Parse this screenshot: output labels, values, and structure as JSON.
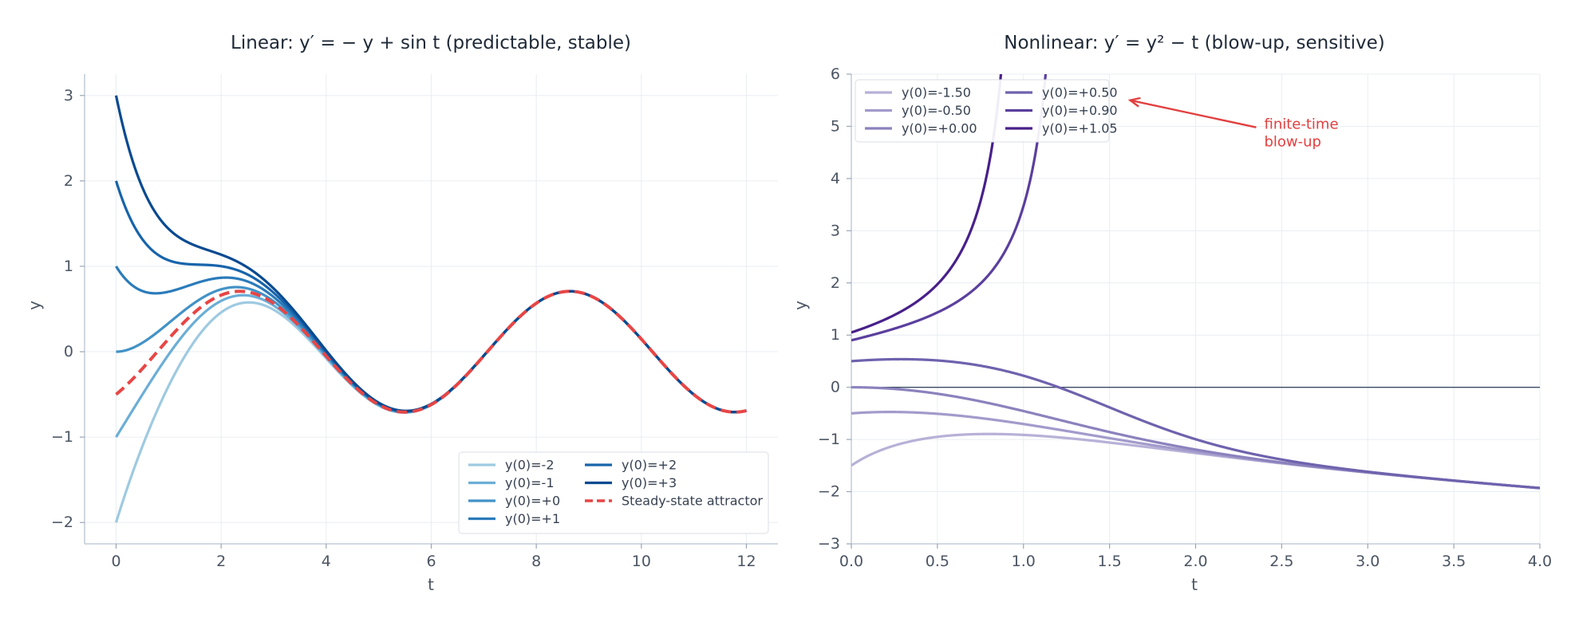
{
  "chart_data": [
    {
      "type": "line",
      "title": "Linear: y′ = − y + sin t  (predictable, stable)",
      "xlabel": "t",
      "ylabel": "y",
      "xlim": [
        -0.6,
        12.6
      ],
      "ylim": [
        -2.25,
        3.25
      ],
      "xticks": [
        0,
        2,
        4,
        6,
        8,
        10,
        12
      ],
      "yticks": [
        -2,
        -1,
        0,
        1,
        2,
        3
      ],
      "xtick_labels": [
        "0",
        "2",
        "4",
        "6",
        "8",
        "10",
        "12"
      ],
      "ytick_labels": [
        "−2",
        "−1",
        "0",
        "1",
        "2",
        "3"
      ],
      "grid": true,
      "legend_position": "lower-right",
      "equation": "y' = -y + sin t",
      "t_range": [
        0,
        12
      ],
      "series": [
        {
          "name": "y(0)=-2",
          "y0": -2,
          "color": "#9ecae1",
          "style": "solid"
        },
        {
          "name": "y(0)=-1",
          "y0": -1,
          "color": "#6baed6",
          "style": "solid"
        },
        {
          "name": "y(0)=+0",
          "y0": 0,
          "color": "#4292c6",
          "style": "solid"
        },
        {
          "name": "y(0)=+1",
          "y0": 1,
          "color": "#2b7bba",
          "style": "solid"
        },
        {
          "name": "y(0)=+2",
          "y0": 2,
          "color": "#1764ab",
          "style": "solid"
        },
        {
          "name": "y(0)=+3",
          "y0": 3,
          "color": "#084a91",
          "style": "solid"
        },
        {
          "name": "Steady-state attractor",
          "y0": -0.5,
          "color": "#e84545",
          "style": "dashed"
        }
      ]
    },
    {
      "type": "line",
      "title": "Nonlinear: y′ = y² − t  (blow-up, sensitive)",
      "xlabel": "t",
      "ylabel": "y",
      "xlim": [
        0,
        4
      ],
      "ylim": [
        -3,
        6
      ],
      "xticks": [
        0,
        0.5,
        1,
        1.5,
        2,
        2.5,
        3,
        3.5,
        4
      ],
      "yticks": [
        -3,
        -2,
        -1,
        0,
        1,
        2,
        3,
        4,
        5,
        6
      ],
      "xtick_labels": [
        "0.0",
        "0.5",
        "1.0",
        "1.5",
        "2.0",
        "2.5",
        "3.0",
        "3.5",
        "4.0"
      ],
      "ytick_labels": [
        "−3",
        "−2",
        "−1",
        "0",
        "1",
        "2",
        "3",
        "4",
        "5",
        "6"
      ],
      "grid": true,
      "legend_position": "upper-left",
      "equation": "y' = y^2 - t",
      "t_range": [
        0,
        4
      ],
      "series": [
        {
          "name": "y(0)=-1.50",
          "y0": -1.5,
          "color": "#b7b1d7"
        },
        {
          "name": "y(0)=-0.50",
          "y0": -0.5,
          "color": "#a29bcb"
        },
        {
          "name": "y(0)=+0.00",
          "y0": 0.0,
          "color": "#8b82bd"
        },
        {
          "name": "y(0)=+0.50",
          "y0": 0.5,
          "color": "#6f62ad"
        },
        {
          "name": "y(0)=+0.90",
          "y0": 0.9,
          "color": "#5b3f9e"
        },
        {
          "name": "y(0)=+1.05",
          "y0": 1.05,
          "color": "#48208a"
        }
      ],
      "annotation": {
        "lines": [
          "finite-time",
          "blow-up"
        ],
        "arrow_target": [
          1.62,
          5.5
        ],
        "text_at": [
          2.38,
          4.95
        ],
        "color": "#e24040"
      }
    }
  ]
}
